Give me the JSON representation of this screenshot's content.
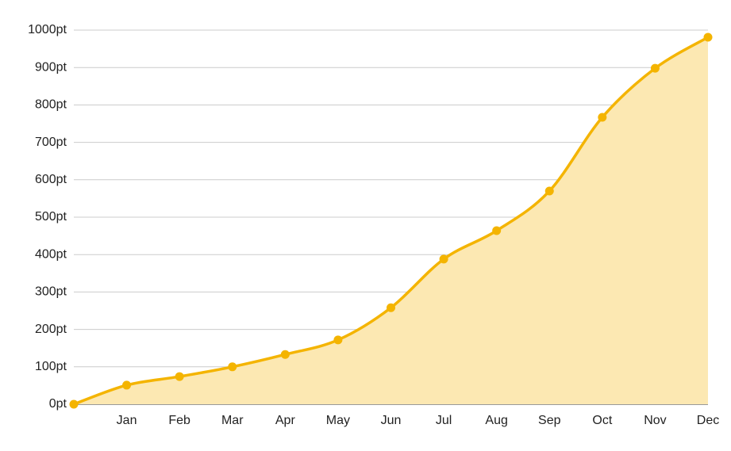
{
  "chart_data": {
    "type": "area",
    "categories": [
      null,
      "Jan",
      "Feb",
      "Mar",
      "Apr",
      "May",
      "Jun",
      "Jul",
      "Aug",
      "Sep",
      "Oct",
      "Nov",
      "Dec"
    ],
    "series": [
      {
        "color": "#f4b400",
        "fill": "#fce8b2",
        "values": [
          0,
          51,
          74,
          100,
          133,
          172,
          258,
          388,
          464,
          570,
          767,
          898,
          981
        ]
      }
    ],
    "ylim": [
      0,
      1000
    ],
    "yticks": [
      {
        "value": 0,
        "label": "0pt"
      },
      {
        "value": 100,
        "label": "100pt"
      },
      {
        "value": 200,
        "label": "200pt"
      },
      {
        "value": 300,
        "label": "300pt"
      },
      {
        "value": 400,
        "label": "400pt"
      },
      {
        "value": 500,
        "label": "500pt"
      },
      {
        "value": 600,
        "label": "600pt"
      },
      {
        "value": 700,
        "label": "700pt"
      },
      {
        "value": 800,
        "label": "800pt"
      },
      {
        "value": 900,
        "label": "900pt"
      },
      {
        "value": 1000,
        "label": "1000pt"
      }
    ],
    "grid": true
  }
}
